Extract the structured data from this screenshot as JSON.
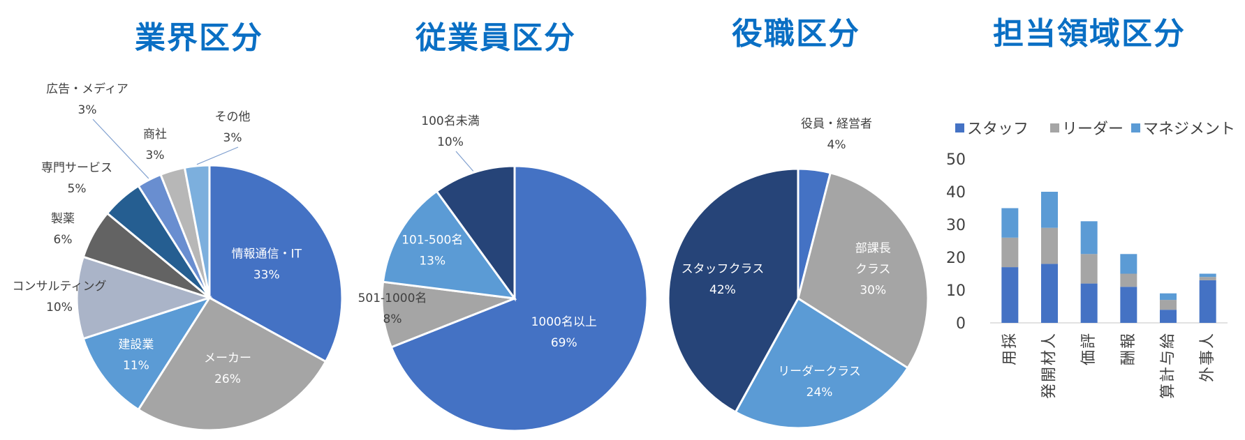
{
  "titles": {
    "industry": "業界区分",
    "employees": "従業員区分",
    "position": "役職区分",
    "area": "担当領域区分"
  },
  "chart_data": [
    {
      "type": "pie",
      "title": "業界区分",
      "slices": [
        {
          "name": "情報通信・IT",
          "value": 33,
          "label": "33%",
          "color": "#4472c4"
        },
        {
          "name": "メーカー",
          "value": 26,
          "label": "26%",
          "color": "#a5a5a5"
        },
        {
          "name": "建設業",
          "value": 11,
          "label": "11%",
          "color": "#5b9bd5"
        },
        {
          "name": "コンサルティング",
          "value": 10,
          "label": "10%",
          "color": "#aab4c8"
        },
        {
          "name": "製薬",
          "value": 6,
          "label": "6%",
          "color": "#636363"
        },
        {
          "name": "専門サービス",
          "value": 5,
          "label": "5%",
          "color": "#255e91"
        },
        {
          "name": "広告・メディア",
          "value": 3,
          "label": "3%",
          "color": "#698ed0"
        },
        {
          "name": "商社",
          "value": 3,
          "label": "3%",
          "color": "#b7b7b7"
        },
        {
          "name": "その他",
          "value": 3,
          "label": "3%",
          "color": "#7cafdd"
        }
      ]
    },
    {
      "type": "pie",
      "title": "従業員区分",
      "slices": [
        {
          "name": "1000名以上",
          "value": 69,
          "label": "69%",
          "color": "#4472c4"
        },
        {
          "name": "501-1000名",
          "value": 8,
          "label": "8%",
          "color": "#a5a5a5"
        },
        {
          "name": "101-500名",
          "value": 13,
          "label": "13%",
          "color": "#5b9bd5"
        },
        {
          "name": "100名未満",
          "value": 10,
          "label": "10%",
          "color": "#264478"
        }
      ]
    },
    {
      "type": "pie",
      "title": "役職区分",
      "slices": [
        {
          "name": "役員・経営者",
          "value": 4,
          "label": "4%",
          "color": "#4472c4"
        },
        {
          "name": "部課長\nクラス",
          "value": 30,
          "label": "30%",
          "color": "#a5a5a5"
        },
        {
          "name": "リーダークラス",
          "value": 24,
          "label": "24%",
          "color": "#5b9bd5"
        },
        {
          "name": "スタッフクラス",
          "value": 42,
          "label": "42%",
          "color": "#264478"
        }
      ]
    },
    {
      "type": "bar",
      "stacked": true,
      "title": "担当領域区分",
      "categories": [
        "採用",
        "人材開発",
        "評価",
        "報酬",
        "給与計算",
        "人事外"
      ],
      "series": [
        {
          "name": "スタッフ",
          "values": [
            17,
            18,
            12,
            11,
            4,
            13
          ],
          "color": "#4472c4"
        },
        {
          "name": "リーダー",
          "values": [
            9,
            11,
            9,
            4,
            3,
            1
          ],
          "color": "#a5a5a5"
        },
        {
          "name": "マネジメント",
          "values": [
            9,
            11,
            10,
            6,
            2,
            1
          ],
          "color": "#5b9bd5"
        }
      ],
      "yticks": [
        "0",
        "10",
        "20",
        "30",
        "40",
        "50"
      ],
      "ylim": [
        0,
        50
      ],
      "legend": "top",
      "grid": false
    }
  ]
}
